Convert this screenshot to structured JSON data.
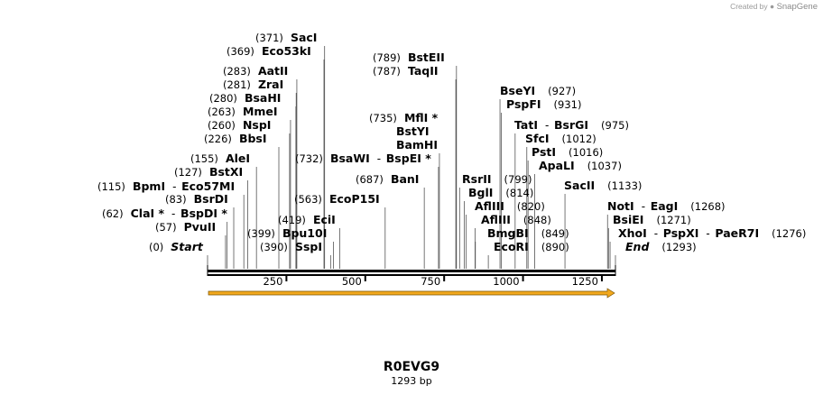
{
  "watermark": {
    "prefix": "Created by",
    "brand": "SnapGene"
  },
  "chart_data": {
    "type": "linear-restriction-map",
    "title": "R0EVG9",
    "subtitle": "1293 bp",
    "length": 1293,
    "ticks": [
      250,
      500,
      750,
      1000,
      1250
    ],
    "feature": {
      "start": 1,
      "end": 1293,
      "direction": "forward",
      "color": "#f2a81d"
    },
    "colors": {
      "backbone": "#000000",
      "leader": "#555555",
      "feature": "#f2a81d"
    },
    "sites": [
      {
        "pos": 0,
        "names": [
          "Start"
        ],
        "italic": true
      },
      {
        "pos": 57,
        "names": [
          "PvuII"
        ]
      },
      {
        "pos": 62,
        "names": [
          "ClaI *",
          "BspDI *"
        ]
      },
      {
        "pos": 83,
        "names": [
          "BsrDI"
        ]
      },
      {
        "pos": 115,
        "names": [
          "BpmI",
          "Eco57MI"
        ]
      },
      {
        "pos": 127,
        "names": [
          "BstXI"
        ]
      },
      {
        "pos": 155,
        "names": [
          "AleI"
        ]
      },
      {
        "pos": 226,
        "names": [
          "BbsI"
        ]
      },
      {
        "pos": 260,
        "names": [
          "NspI"
        ]
      },
      {
        "pos": 263,
        "names": [
          "MmeI"
        ]
      },
      {
        "pos": 280,
        "names": [
          "BsaHI"
        ]
      },
      {
        "pos": 281,
        "names": [
          "ZraI"
        ]
      },
      {
        "pos": 283,
        "names": [
          "AatII"
        ]
      },
      {
        "pos": 369,
        "names": [
          "Eco53kI"
        ]
      },
      {
        "pos": 371,
        "names": [
          "SacI"
        ]
      },
      {
        "pos": 390,
        "names": [
          "SspI"
        ]
      },
      {
        "pos": 399,
        "names": [
          "Bpu10I"
        ]
      },
      {
        "pos": 419,
        "names": [
          "EciI"
        ]
      },
      {
        "pos": 563,
        "names": [
          "EcoP15I"
        ]
      },
      {
        "pos": 687,
        "names": [
          "BanI"
        ]
      },
      {
        "pos": 732,
        "names": [
          "BsaWI",
          "BspEI *"
        ]
      },
      {
        "pos": 735,
        "names": [
          "MflI *",
          "BstYI",
          "BamHI"
        ]
      },
      {
        "pos": 787,
        "names": [
          "TaqII"
        ]
      },
      {
        "pos": 789,
        "names": [
          "BstEII"
        ]
      },
      {
        "pos": 799,
        "names": [
          "RsrII"
        ]
      },
      {
        "pos": 814,
        "names": [
          "BglI"
        ]
      },
      {
        "pos": 820,
        "names": [
          "AflIII"
        ]
      },
      {
        "pos": 848,
        "names": [
          "AflIII"
        ]
      },
      {
        "pos": 849,
        "names": [
          "BmgBI"
        ]
      },
      {
        "pos": 890,
        "names": [
          "EcoRI"
        ]
      },
      {
        "pos": 927,
        "names": [
          "BseYI"
        ]
      },
      {
        "pos": 931,
        "names": [
          "PspFI"
        ]
      },
      {
        "pos": 975,
        "names": [
          "TatI",
          "BsrGI"
        ]
      },
      {
        "pos": 1012,
        "names": [
          "SfcI"
        ]
      },
      {
        "pos": 1016,
        "names": [
          "PstI"
        ]
      },
      {
        "pos": 1037,
        "names": [
          "ApaLI"
        ]
      },
      {
        "pos": 1133,
        "names": [
          "SacII"
        ]
      },
      {
        "pos": 1268,
        "names": [
          "NotI",
          "EagI"
        ]
      },
      {
        "pos": 1271,
        "names": [
          "BsiEI"
        ]
      },
      {
        "pos": 1276,
        "names": [
          "XhoI",
          "PspXI",
          "PaeR7I"
        ]
      },
      {
        "pos": 1293,
        "names": [
          "End"
        ],
        "italic": true
      }
    ]
  }
}
